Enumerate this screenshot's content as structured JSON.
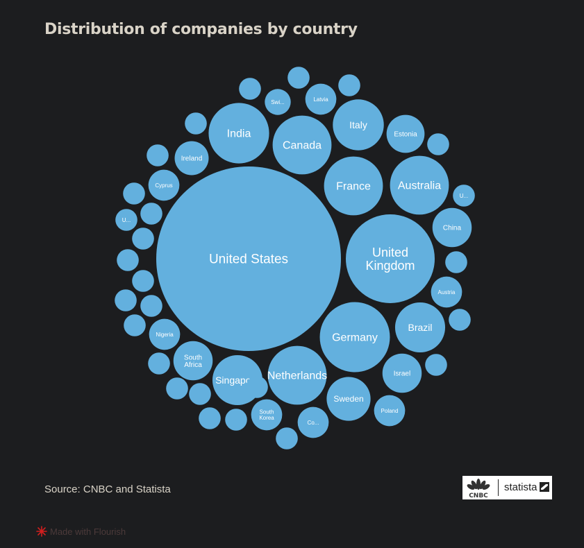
{
  "title": "Distribution of companies by country",
  "source": "Source: CNBC and Statista",
  "credit": "Made with Flourish",
  "logos": {
    "cnbc": "CNBC",
    "statista": "statista"
  },
  "colors": {
    "background": "#1c1d1f",
    "bubble": "#63b0de",
    "text": "#d9d3c7"
  },
  "chart_data": {
    "type": "bubble",
    "title": "Distribution of companies by country",
    "unit": "",
    "points": [
      {
        "label": "United States",
        "value": 35.4
      },
      {
        "label": "United Kingdom",
        "value": 8.2
      },
      {
        "label": "Germany",
        "value": 5.1
      },
      {
        "label": "India",
        "value": 3.8
      },
      {
        "label": "Netherlands",
        "value": 3.6
      },
      {
        "label": "France",
        "value": 3.6
      },
      {
        "label": "Canada",
        "value": 3.6
      },
      {
        "label": "Australia",
        "value": 3.6
      },
      {
        "label": "Italy",
        "value": 2.7
      },
      {
        "label": "Singapore",
        "value": 2.6
      },
      {
        "label": "Brazil",
        "value": 2.6
      },
      {
        "label": "Sweden",
        "value": 2.0
      },
      {
        "label": "China",
        "value": 1.6
      },
      {
        "label": "Israel",
        "value": 1.6
      },
      {
        "label": "South Africa",
        "value": 1.6
      },
      {
        "label": "Estonia",
        "value": 1.5
      },
      {
        "label": "Ireland",
        "value": 1.2
      },
      {
        "label": "Austria",
        "value": 1.0
      },
      {
        "label": "Poland",
        "value": 1.0
      },
      {
        "label": "Nigeria",
        "value": 1.0
      },
      {
        "label": "Cyprus",
        "value": 1.0
      },
      {
        "label": "South Korea",
        "value": 1.0
      },
      {
        "label": "Co...",
        "value": 1.0
      },
      {
        "label": "Latvia",
        "value": 1.0
      },
      {
        "label": "Swi...",
        "value": 0.7
      },
      {
        "label": "U...",
        "value": 0.5
      },
      {
        "label": "U...",
        "value": 0.5
      },
      {
        "label": "",
        "value": 0.5
      },
      {
        "label": "",
        "value": 0.5
      },
      {
        "label": "",
        "value": 0.5
      },
      {
        "label": "",
        "value": 0.5
      },
      {
        "label": "",
        "value": 0.5
      },
      {
        "label": "",
        "value": 0.5
      },
      {
        "label": "",
        "value": 0.5
      },
      {
        "label": "",
        "value": 0.5
      },
      {
        "label": "",
        "value": 0.5
      },
      {
        "label": "",
        "value": 0.5
      },
      {
        "label": "",
        "value": 0.5
      },
      {
        "label": "",
        "value": 0.5
      },
      {
        "label": "",
        "value": 0.5
      },
      {
        "label": "",
        "value": 0.5
      },
      {
        "label": "",
        "value": 0.5
      },
      {
        "label": "",
        "value": 0.5
      },
      {
        "label": "",
        "value": 0.5
      },
      {
        "label": "",
        "value": 0.5
      },
      {
        "label": "",
        "value": 0.5
      },
      {
        "label": "",
        "value": 0.5
      },
      {
        "label": "",
        "value": 0.5
      },
      {
        "label": "",
        "value": 0.5
      },
      {
        "label": "",
        "value": 0.5
      },
      {
        "label": "",
        "value": 0.5
      }
    ]
  }
}
